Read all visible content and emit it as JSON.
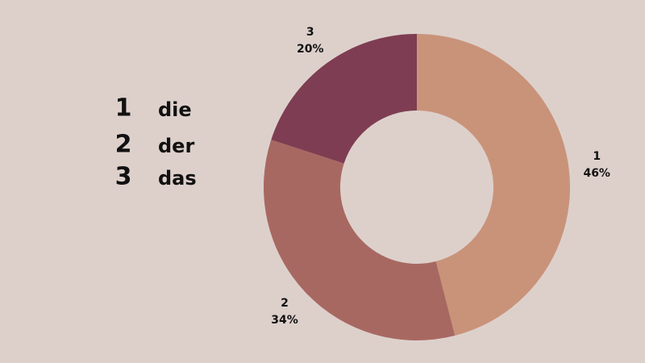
{
  "chart_data": {
    "type": "donut",
    "categories": [
      "1",
      "2",
      "3"
    ],
    "values": [
      46,
      34,
      20
    ],
    "value_labels": [
      "46%",
      "34%",
      "20%"
    ],
    "colors": [
      "#c9937a",
      "#a86862",
      "#7e3d52"
    ],
    "legend_labels": [
      "die",
      "der",
      "das"
    ]
  }
}
